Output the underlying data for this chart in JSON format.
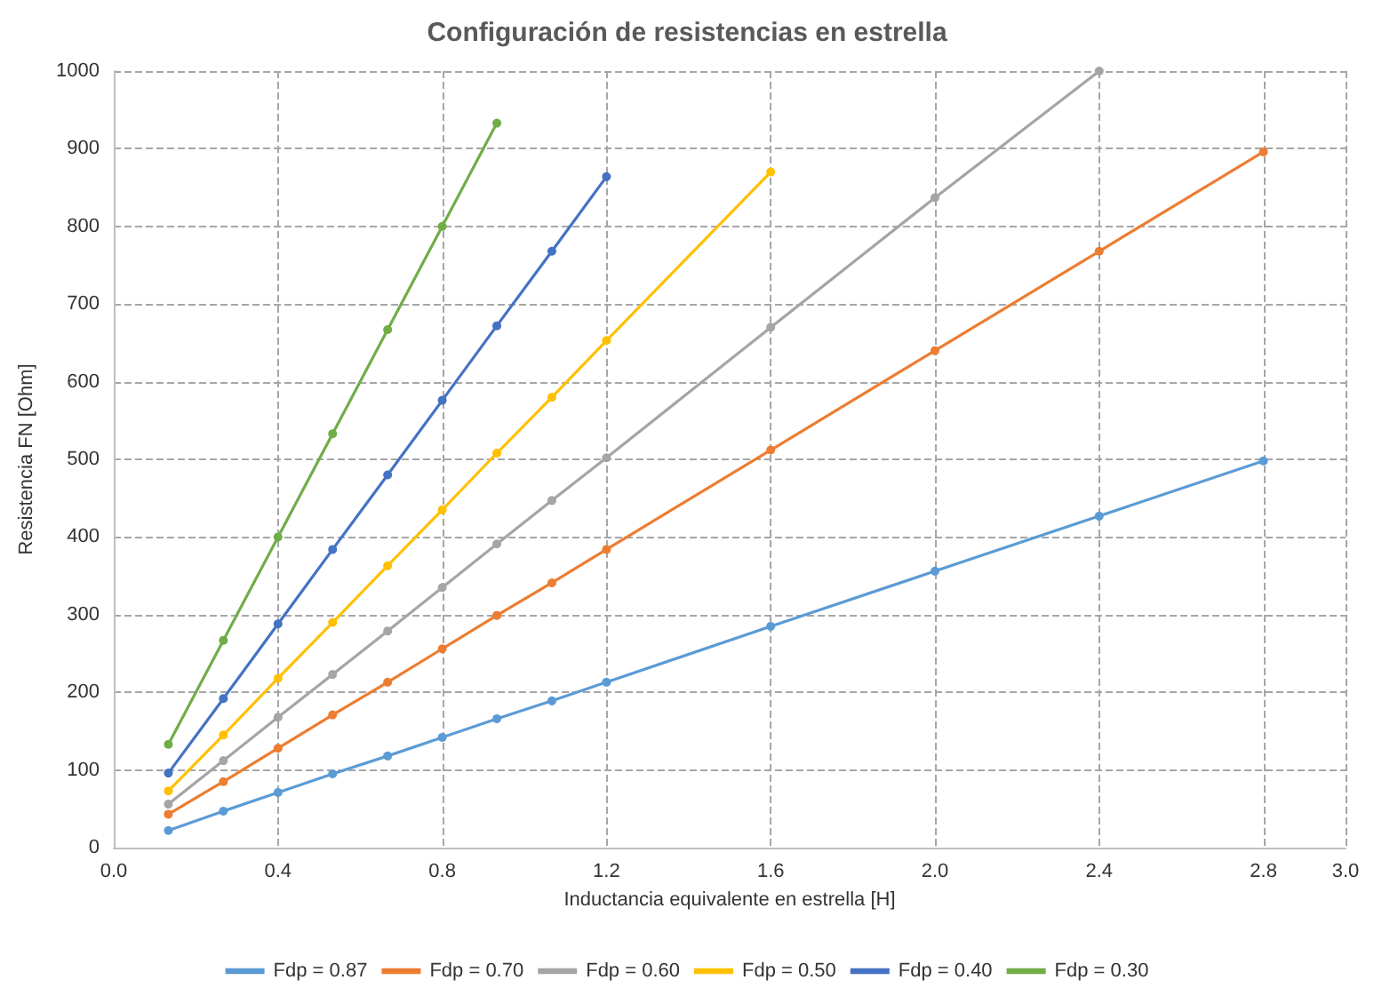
{
  "chart_data": {
    "type": "line",
    "title": "Configuración de resistencias en estrella",
    "xlabel": "Inductancia equivalente en estrella [H]",
    "ylabel": "Resistencia FN [Ohm]",
    "x": [
      0.133,
      0.267,
      0.4,
      0.533,
      0.667,
      0.8,
      0.933,
      1.067,
      1.2,
      1.6,
      2.0,
      2.4,
      2.8
    ],
    "series": [
      {
        "name": "Fdp = 0.87",
        "color": "#5b9bd5",
        "values": [
          22,
          47,
          71,
          95,
          118,
          142,
          166,
          189,
          213,
          285,
          356,
          427,
          498
        ]
      },
      {
        "name": "Fdp = 0.70",
        "color": "#ed7d31",
        "values": [
          43,
          85,
          128,
          171,
          213,
          256,
          299,
          341,
          384,
          512,
          640,
          768,
          896
        ]
      },
      {
        "name": "Fdp = 0.60",
        "color": "#a5a5a5",
        "values": [
          56,
          112,
          168,
          223,
          279,
          335,
          391,
          447,
          502,
          670,
          837,
          1000,
          null
        ]
      },
      {
        "name": "Fdp = 0.50",
        "color": "#ffc000",
        "values": [
          73,
          145,
          218,
          290,
          363,
          435,
          508,
          580,
          653,
          870,
          null,
          null,
          null
        ]
      },
      {
        "name": "Fdp = 0.40",
        "color": "#4472c4",
        "values": [
          96,
          192,
          288,
          384,
          480,
          576,
          672,
          768,
          864,
          null,
          null,
          null,
          null
        ]
      },
      {
        "name": "Fdp = 0.30",
        "color": "#70ad47",
        "values": [
          133,
          267,
          400,
          533,
          667,
          800,
          933,
          null,
          null,
          null,
          null,
          null,
          null
        ]
      }
    ],
    "xlim": [
      0,
      3
    ],
    "xticks": [
      {
        "value": 0,
        "label": "0.0"
      },
      0.4,
      0.8,
      1.2,
      1.6,
      {
        "value": 2,
        "label": "2.0"
      },
      2.4,
      2.8,
      {
        "value": 3,
        "label": "3.0"
      }
    ],
    "ylim": [
      0,
      1000
    ],
    "yticks": [
      0,
      100,
      200,
      300,
      400,
      500,
      600,
      700,
      800,
      900,
      1000
    ],
    "grid": true,
    "legend": "bottom",
    "marker": "circle",
    "line_style": "solid"
  }
}
